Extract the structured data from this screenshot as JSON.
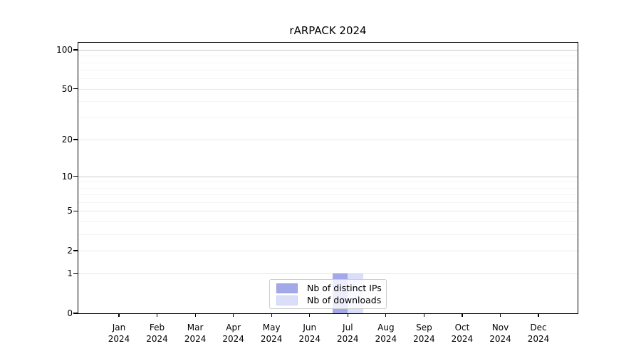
{
  "chart_data": {
    "type": "bar",
    "title": "rARPACK 2024",
    "categories": [
      "Jan",
      "Feb",
      "Mar",
      "Apr",
      "May",
      "Jun",
      "Jul",
      "Aug",
      "Sep",
      "Oct",
      "Nov",
      "Dec"
    ],
    "x_year_label": "2024",
    "series": [
      {
        "name": "Nb of distinct IPs",
        "color": "#a3a9e8",
        "edge_color": "#989fe3",
        "values": [
          0,
          0,
          0,
          0,
          0,
          0,
          1,
          0,
          0,
          0,
          0,
          0
        ]
      },
      {
        "name": "Nb of downloads",
        "color": "#dbdef9",
        "edge_color": "#ccd1f4",
        "values": [
          0,
          0,
          0,
          0,
          0,
          0,
          1,
          0,
          0,
          0,
          0,
          0
        ]
      }
    ],
    "xlabel": "",
    "ylabel": "",
    "y_axis": {
      "scale": "log10(value+1)",
      "tick_labels": [
        "0",
        "1",
        "2",
        "5",
        "10",
        "20",
        "50",
        "100"
      ],
      "ticks": [
        0,
        1,
        2,
        5,
        10,
        20,
        50,
        100
      ],
      "minor_ticks": [
        3,
        4,
        6,
        7,
        8,
        9,
        30,
        40,
        60,
        70,
        80,
        90
      ],
      "decade_ticks": [
        10,
        100
      ],
      "ylim": [
        0,
        100
      ]
    },
    "grid": "horizontal",
    "legend": {
      "position": "bottom-center",
      "entries": [
        "Nb of distinct IPs",
        "Nb of downloads"
      ]
    }
  },
  "colors": {
    "background": "#ffffff",
    "axis": "#000000",
    "grid_major": "#e7e7e7",
    "grid_minor": "#f4f4f4",
    "grid_decade": "#c9c9c9",
    "legend_border": "#cccccc"
  }
}
